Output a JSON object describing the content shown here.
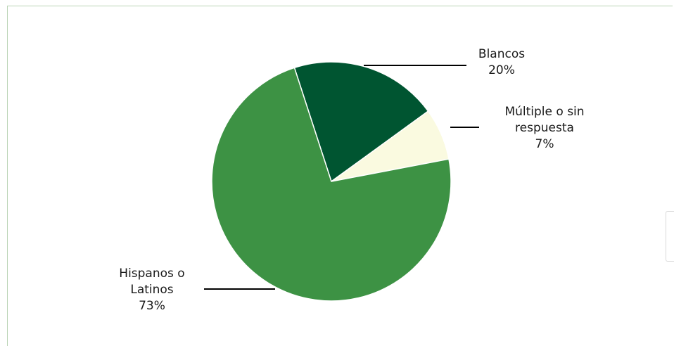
{
  "chart_data": {
    "type": "pie",
    "slices": [
      {
        "name": "Blancos",
        "label_lines": [
          "Blancos",
          "20%"
        ],
        "value": 20,
        "color": "#005531"
      },
      {
        "name": "Múltiple o sin respuesta",
        "label_lines": [
          "Múltiple o sin",
          "respuesta",
          "7%"
        ],
        "value": 7,
        "color": "#fafae0"
      },
      {
        "name": "Hispanos o Latinos",
        "label_lines": [
          "Hispanos o",
          "Latinos",
          "73%"
        ],
        "value": 73,
        "color": "#3d9244"
      }
    ],
    "start_angle_deg": -18,
    "slice_border_color": "#ffffff"
  },
  "side_tab": {
    "icon": "collapse-handle-icon",
    "color": "#3b7d4a"
  }
}
